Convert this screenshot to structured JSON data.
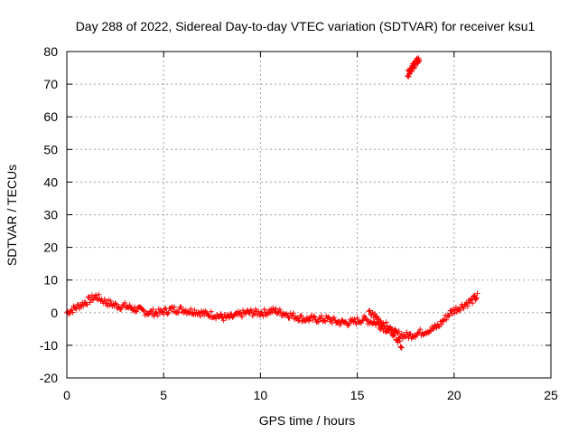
{
  "chart_data": {
    "type": "scatter",
    "title": "Day 288 of 2022, Sidereal Day-to-day VTEC variation (SDTVAR) for receiver ksu1",
    "xlabel": "GPS time / hours",
    "ylabel": "SDTVAR / TECUs",
    "xlim": [
      0,
      25
    ],
    "ylim": [
      -20,
      80
    ],
    "xticks": [
      0,
      5,
      10,
      15,
      20,
      25
    ],
    "yticks": [
      -20,
      -10,
      0,
      10,
      20,
      30,
      40,
      50,
      60,
      70,
      80
    ],
    "xtick_labels": [
      "0",
      "5",
      "10",
      "15",
      "20",
      "25"
    ],
    "ytick_labels": [
      "-20",
      "-10",
      "0",
      "10",
      "20",
      "30",
      "40",
      "50",
      "60",
      "70",
      "80"
    ],
    "grid": true,
    "marker": "+",
    "color": "#ff0000",
    "series": [
      {
        "name": "main band",
        "x": [
          0.0,
          0.3,
          0.6,
          0.9,
          1.2,
          1.5,
          1.8,
          2.1,
          2.4,
          2.7,
          3.0,
          3.3,
          3.6,
          3.9,
          4.2,
          4.5,
          4.8,
          5.1,
          5.4,
          5.7,
          6.0,
          6.3,
          6.6,
          6.9,
          7.2,
          7.5,
          7.8,
          8.1,
          8.4,
          8.7,
          9.0,
          9.3,
          9.6,
          9.9,
          10.2,
          10.5,
          10.8,
          11.1,
          11.4,
          11.7,
          12.0,
          12.3,
          12.6,
          12.9,
          13.2,
          13.5,
          13.8,
          14.1,
          14.4,
          14.7,
          15.0,
          15.3,
          15.6,
          15.9,
          16.2,
          16.5,
          16.8,
          17.1,
          17.4,
          17.7,
          18.0,
          18.3,
          18.6,
          18.9,
          19.2,
          19.5,
          19.8,
          20.1,
          20.4,
          20.7,
          21.0,
          21.2
        ],
        "y": [
          0,
          1,
          2,
          3,
          4,
          5,
          4,
          3,
          2.5,
          2,
          2,
          1.5,
          1,
          0.5,
          0,
          0,
          0,
          0.5,
          1,
          1,
          1,
          0.5,
          0.5,
          0,
          -0.5,
          -0.5,
          -1,
          -1.5,
          -1.5,
          -1,
          -0.5,
          0,
          0,
          0,
          0,
          0.5,
          0.5,
          0,
          -0.5,
          -1,
          -1.5,
          -2,
          -2,
          -2,
          -2,
          -2,
          -2.5,
          -3,
          -3,
          -3,
          -2.5,
          -2,
          -2.5,
          -3,
          -4,
          -5,
          -6,
          -6.5,
          -7,
          -7,
          -6.5,
          -6,
          -5.5,
          -5,
          -4,
          -2,
          0,
          1,
          2,
          3,
          4,
          5
        ]
      },
      {
        "name": "descending track",
        "x": [
          15.6,
          15.9,
          16.2,
          16.5,
          16.8,
          17.1,
          17.3
        ],
        "y": [
          0,
          -1,
          -2.5,
          -4,
          -6,
          -8,
          -10
        ]
      },
      {
        "name": "upper excursion",
        "x": [
          17.6,
          17.7,
          17.8,
          17.9,
          18.0,
          18.1,
          18.2
        ],
        "y": [
          73,
          74,
          75,
          75.5,
          76.5,
          77,
          77.5
        ]
      }
    ]
  }
}
